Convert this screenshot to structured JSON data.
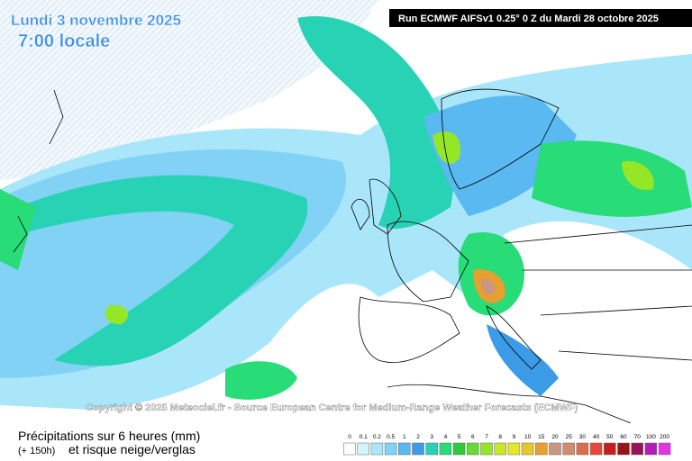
{
  "header": {
    "date": "Lundi 3 novembre 2025",
    "time": "7:00 locale",
    "run": "Run ECMWF AIFSv1 0.25° 0 Z du Mardi 28 octobre 2025"
  },
  "copyright": "Copyright © 2025 Meteociel.fr - Source European Centre for Medium-Range Weather Forecasts (ECMWF)",
  "footer": {
    "title": "Précipitations sur 6 heures (mm)",
    "lead": "(+ 150h)",
    "subtitle": "et risque neige/verglas"
  },
  "legend": {
    "levels": [
      {
        "label": "0",
        "color": "#ffffff"
      },
      {
        "label": "0.1",
        "color": "#d2f4fa"
      },
      {
        "label": "0.2",
        "color": "#aae6fa"
      },
      {
        "label": "0.5",
        "color": "#82d2f5"
      },
      {
        "label": "1",
        "color": "#5ab9f0"
      },
      {
        "label": "2",
        "color": "#3c9be6"
      },
      {
        "label": "3",
        "color": "#28d2b4"
      },
      {
        "label": "4",
        "color": "#28dc78"
      },
      {
        "label": "5",
        "color": "#32c83c"
      },
      {
        "label": "6",
        "color": "#64dc32"
      },
      {
        "label": "7",
        "color": "#96e628"
      },
      {
        "label": "8",
        "color": "#c8e628"
      },
      {
        "label": "9",
        "color": "#e6e628"
      },
      {
        "label": "10",
        "color": "#e6c828"
      },
      {
        "label": "15",
        "color": "#e6a032"
      },
      {
        "label": "20",
        "color": "#c89682"
      },
      {
        "label": "25",
        "color": "#d28c6e"
      },
      {
        "label": "30",
        "color": "#dc6e50"
      },
      {
        "label": "40",
        "color": "#e6463c"
      },
      {
        "label": "50",
        "color": "#c81e1e"
      },
      {
        "label": "60",
        "color": "#961414"
      },
      {
        "label": "70",
        "color": "#96145a"
      },
      {
        "label": "100",
        "color": "#b41eb4"
      },
      {
        "label": "200",
        "color": "#e632e6"
      }
    ]
  }
}
